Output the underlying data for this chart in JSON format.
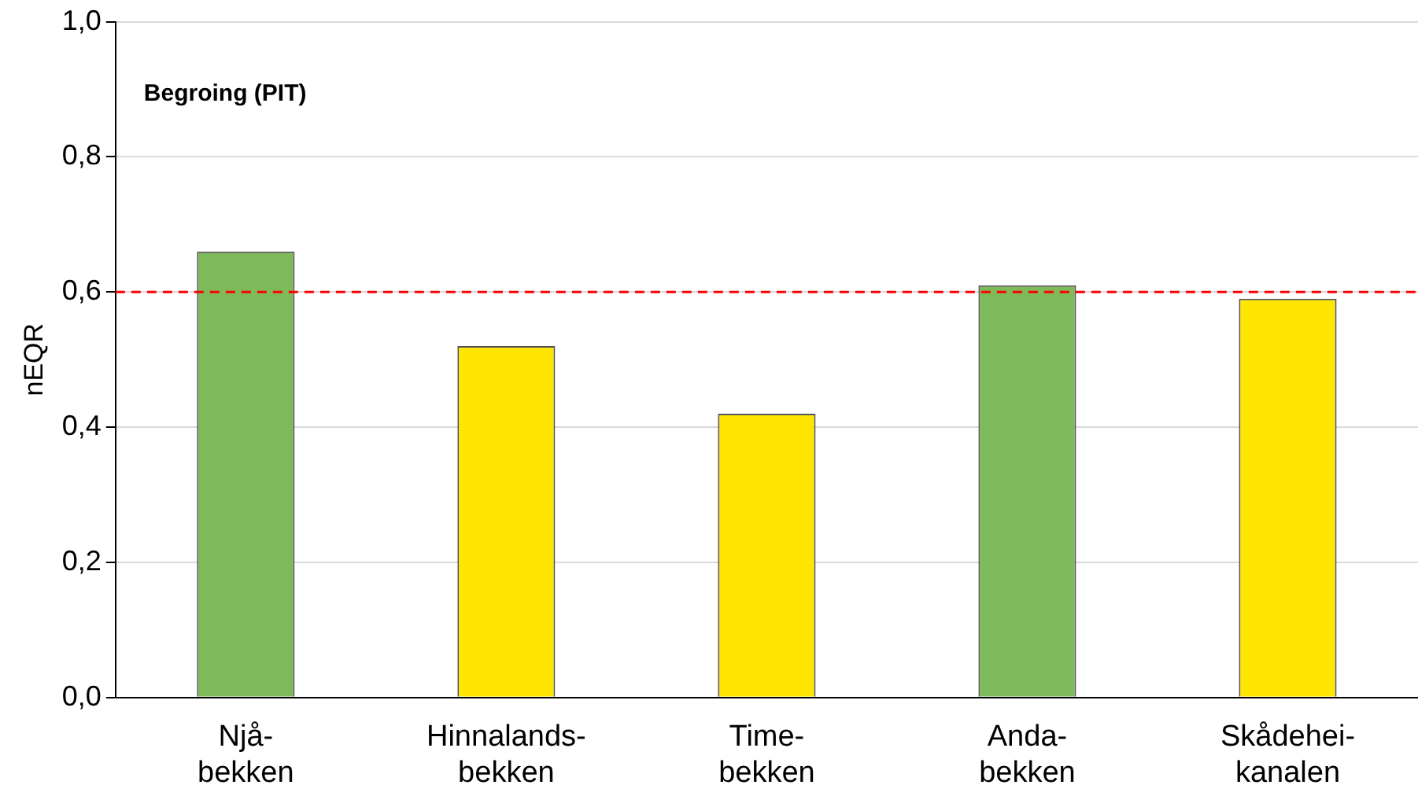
{
  "chart_data": {
    "type": "bar",
    "title": "Begroing (PIT)",
    "ylabel": "nEQR",
    "categories": [
      "Njå-\nbekken",
      "Hinnalands-\nbekken",
      "Time-\nbekken",
      "Anda-\nbekken",
      "Skådehei-\nkanalen"
    ],
    "values": [
      0.66,
      0.52,
      0.42,
      0.61,
      0.59
    ],
    "colors": [
      "#7fba5a",
      "#ffe600",
      "#ffe600",
      "#7fba5a",
      "#ffe600"
    ],
    "ylim": [
      0,
      1
    ],
    "yticks": [
      {
        "value": 0,
        "label": "0,0"
      },
      {
        "value": 0.2,
        "label": "0,2"
      },
      {
        "value": 0.4,
        "label": "0,4"
      },
      {
        "value": 0.6,
        "label": "0,6"
      },
      {
        "value": 0.8,
        "label": "0,8"
      },
      {
        "value": 1,
        "label": "1,0"
      }
    ],
    "grid": "y",
    "legend": false,
    "ref_lines": [
      {
        "axis": "y",
        "value": 0.6,
        "color": "#ff0000",
        "line_style": "dashed"
      }
    ]
  }
}
